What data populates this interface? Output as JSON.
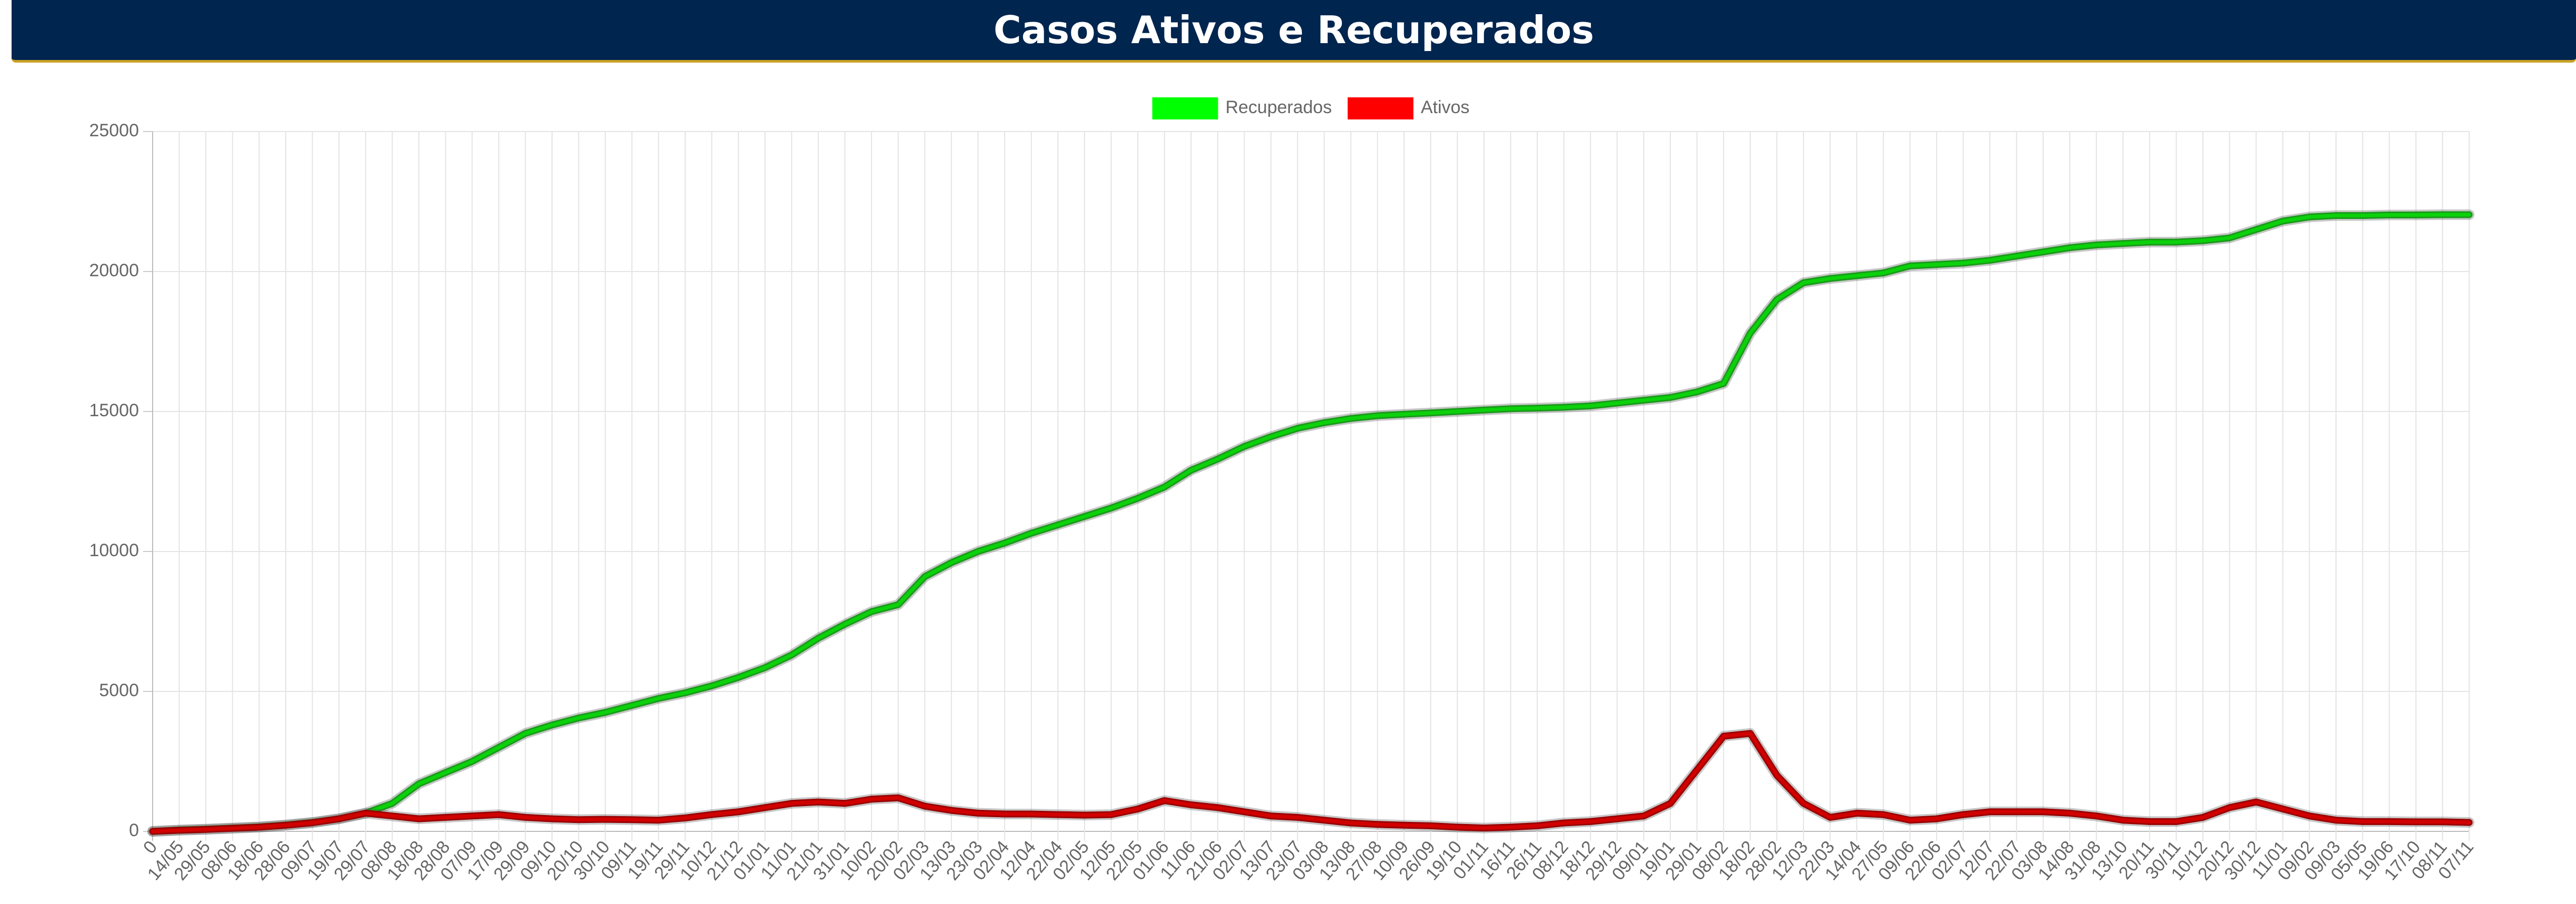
{
  "chart_data": {
    "type": "line",
    "title": "Casos Ativos e Recuperados",
    "categories": [
      "0",
      "14/05",
      "29/05",
      "08/06",
      "18/06",
      "28/06",
      "09/07",
      "19/07",
      "29/07",
      "08/08",
      "18/08",
      "28/08",
      "07/09",
      "17/09",
      "29/09",
      "09/10",
      "20/10",
      "30/10",
      "09/11",
      "19/11",
      "29/11",
      "10/12",
      "21/12",
      "01/01",
      "11/01",
      "21/01",
      "31/01",
      "10/02",
      "20/02",
      "02/03",
      "13/03",
      "23/03",
      "02/04",
      "12/04",
      "22/04",
      "02/05",
      "12/05",
      "22/05",
      "01/06",
      "11/06",
      "21/06",
      "02/07",
      "13/07",
      "23/07",
      "03/08",
      "13/08",
      "27/08",
      "10/09",
      "26/09",
      "19/10",
      "01/11",
      "16/11",
      "26/11",
      "08/12",
      "18/12",
      "29/12",
      "09/01",
      "19/01",
      "29/01",
      "08/02",
      "18/02",
      "28/02",
      "12/03",
      "22/03",
      "14/04",
      "27/05",
      "09/06",
      "22/06",
      "02/07",
      "12/07",
      "22/07",
      "03/08",
      "14/08",
      "31/08",
      "13/10",
      "20/11",
      "30/11",
      "10/12",
      "20/12",
      "30/12",
      "11/01",
      "09/02",
      "09/03",
      "05/05",
      "19/06",
      "17/10",
      "08/11",
      "07/11"
    ],
    "series": [
      {
        "name": "Recuperados",
        "color": "#00ff00",
        "values": [
          0,
          50,
          80,
          120,
          160,
          230,
          320,
          450,
          650,
          1000,
          1700,
          2100,
          2500,
          3000,
          3500,
          3800,
          4050,
          4250,
          4500,
          4750,
          4950,
          5200,
          5500,
          5850,
          6300,
          6900,
          7400,
          7850,
          8100,
          9100,
          9600,
          10000,
          10300,
          10650,
          10950,
          11250,
          11550,
          11900,
          12300,
          12900,
          13300,
          13750,
          14100,
          14400,
          14600,
          14750,
          14850,
          14900,
          14950,
          15000,
          15050,
          15100,
          15120,
          15150,
          15200,
          15300,
          15400,
          15500,
          15700,
          16000,
          17800,
          19000,
          19600,
          19750,
          19850,
          19950,
          20200,
          20250,
          20300,
          20400,
          20550,
          20700,
          20850,
          20950,
          21000,
          21050,
          21050,
          21100,
          21200,
          21500,
          21800,
          21950,
          22000,
          22000,
          22020,
          22020,
          22030,
          22030
        ]
      },
      {
        "name": "Ativos",
        "color": "#ff0000",
        "values": [
          0,
          40,
          70,
          110,
          150,
          220,
          310,
          450,
          650,
          550,
          450,
          500,
          550,
          600,
          500,
          450,
          420,
          430,
          420,
          400,
          480,
          600,
          700,
          850,
          1000,
          1050,
          1000,
          1150,
          1200,
          900,
          750,
          650,
          620,
          620,
          600,
          580,
          600,
          800,
          1100,
          950,
          850,
          700,
          550,
          500,
          400,
          300,
          250,
          220,
          200,
          150,
          120,
          150,
          200,
          300,
          350,
          450,
          550,
          1000,
          2200,
          3400,
          3500,
          2000,
          1000,
          500,
          650,
          600,
          400,
          450,
          600,
          700,
          700,
          700,
          650,
          550,
          400,
          350,
          350,
          500,
          850,
          1050,
          800,
          550,
          400,
          350,
          350,
          340,
          340,
          320
        ]
      }
    ],
    "ylim": [
      0,
      25000
    ],
    "yticks": [
      0,
      5000,
      10000,
      15000,
      20000,
      25000
    ],
    "grid": true,
    "legend": "top"
  }
}
